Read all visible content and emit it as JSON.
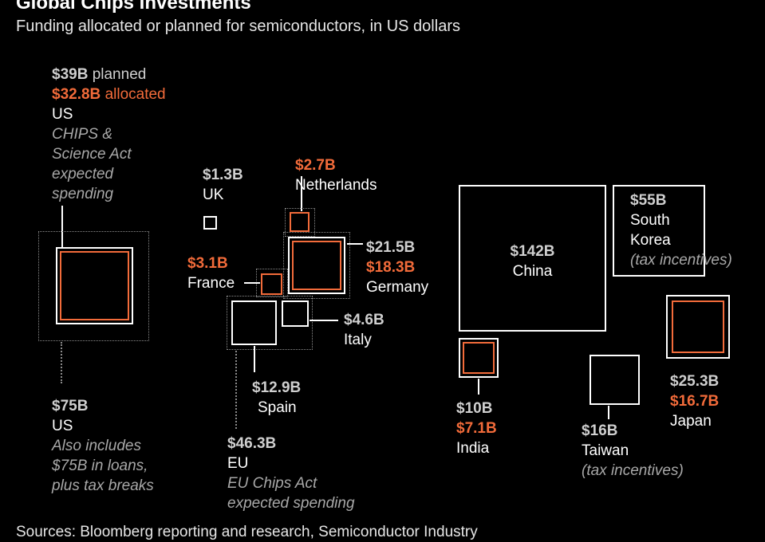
{
  "title": "Global Chips Investments",
  "subtitle": "Funding allocated or planned for semiconductors, in US dollars",
  "source": "Sources: Bloomberg reporting and research, Semiconductor Industry",
  "chart_data": {
    "type": "proportional-squares",
    "title": "Global Chips Investments",
    "subtitle": "Funding allocated or planned for semiconductors, in US dollars",
    "units": "billion US dollars",
    "items": [
      {
        "region": "US",
        "total": "$75B",
        "total_value": 75,
        "planned": "$39B",
        "planned_label": "planned",
        "planned_value": 39,
        "allocated": "$32.8B",
        "allocated_label": "allocated",
        "allocated_value": 32.8,
        "note_top": [
          "CHIPS &",
          "Science Act",
          "expected",
          "spending"
        ],
        "note_bottom": [
          "Also includes",
          "$75B in loans,",
          "plus tax breaks"
        ]
      },
      {
        "region": "EU",
        "total": "$46.3B",
        "total_value": 46.3,
        "note": [
          "EU Chips Act",
          "expected spending"
        ]
      },
      {
        "region": "UK",
        "total": "$1.3B",
        "total_value": 1.3
      },
      {
        "region": "Netherlands",
        "allocated": "$2.7B",
        "allocated_value": 2.7
      },
      {
        "region": "France",
        "allocated": "$3.1B",
        "allocated_value": 3.1
      },
      {
        "region": "Germany",
        "total": "$21.5B",
        "total_value": 21.5,
        "allocated": "$18.3B",
        "allocated_value": 18.3
      },
      {
        "region": "Italy",
        "total": "$4.6B",
        "total_value": 4.6
      },
      {
        "region": "Spain",
        "total": "$12.9B",
        "total_value": 12.9
      },
      {
        "region": "China",
        "total": "$142B",
        "total_value": 142
      },
      {
        "region": "South Korea",
        "region_lines": [
          "South",
          "Korea"
        ],
        "total": "$55B",
        "total_value": 55,
        "note": "(tax incentives)"
      },
      {
        "region": "India",
        "total": "$10B",
        "total_value": 10,
        "allocated": "$7.1B",
        "allocated_value": 7.1
      },
      {
        "region": "Taiwan",
        "total": "$16B",
        "total_value": 16,
        "note": "(tax incentives)"
      },
      {
        "region": "Japan",
        "total": "$25.3B",
        "total_value": 25.3,
        "allocated": "$16.7B",
        "allocated_value": 16.7
      }
    ]
  }
}
